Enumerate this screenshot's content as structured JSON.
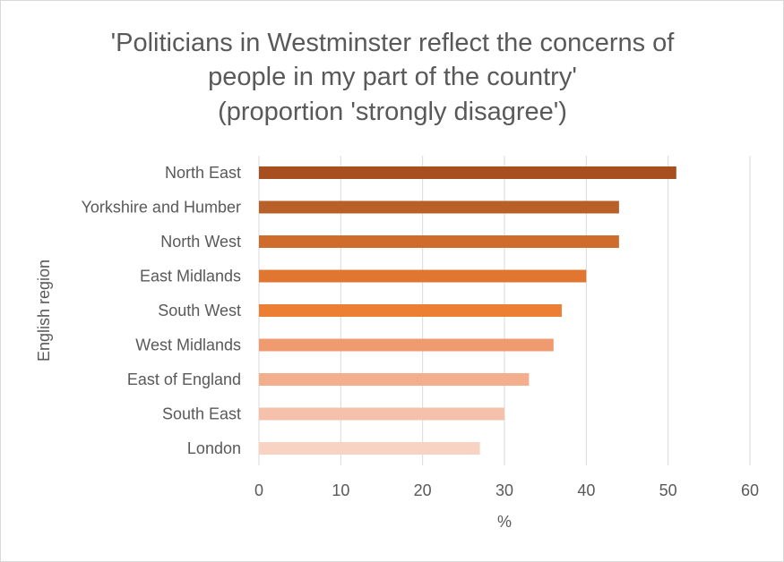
{
  "chart_data": {
    "type": "bar",
    "orientation": "horizontal",
    "title_lines": [
      "'Politicians in Westminster reflect the concerns of",
      "people in my part of the country'",
      "(proportion 'strongly disagree')"
    ],
    "xlabel": "%",
    "ylabel": "English region",
    "xlim": [
      0,
      60
    ],
    "xticks": [
      0,
      10,
      20,
      30,
      40,
      50,
      60
    ],
    "grid": true,
    "categories": [
      "North East",
      "Yorkshire and Humber",
      "North West",
      "East Midlands",
      "South West",
      "West Midlands",
      "East of England",
      "South East",
      "London"
    ],
    "values": [
      51,
      44,
      44,
      40,
      37,
      36,
      33,
      30,
      27
    ],
    "colors": [
      "#a84f1f",
      "#b95f28",
      "#cf6c2c",
      "#e0762f",
      "#ec7f33",
      "#f09a6f",
      "#f3ae8e",
      "#f5c1aa",
      "#f8d3c4"
    ]
  }
}
